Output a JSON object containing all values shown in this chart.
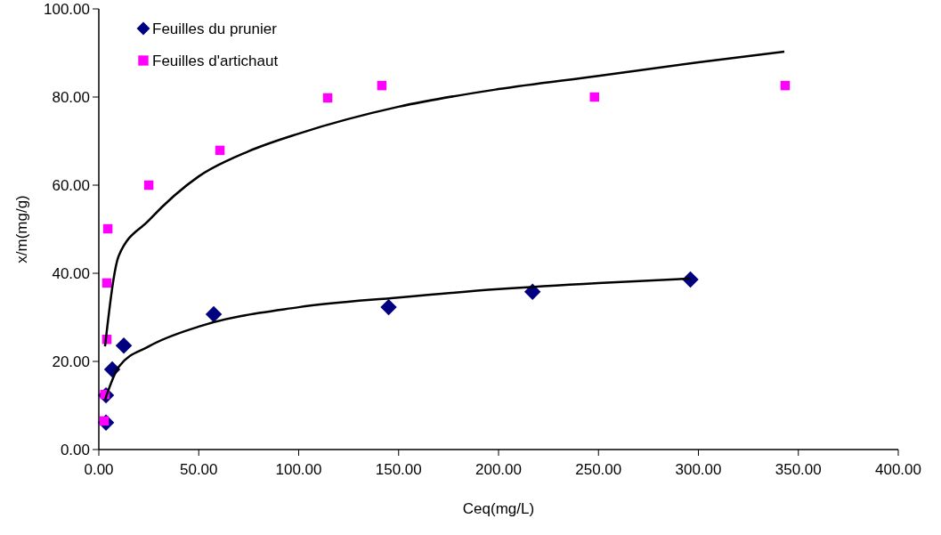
{
  "chart_data": {
    "type": "scatter",
    "xlabel": "Ceq(mg/L)",
    "ylabel": "x/m(mg/g)",
    "xlim": [
      0,
      400
    ],
    "ylim": [
      0,
      100
    ],
    "xticks": [
      {
        "value": 0,
        "label": "0.00"
      },
      {
        "value": 50,
        "label": "50.00"
      },
      {
        "value": 100,
        "label": "100.00"
      },
      {
        "value": 150,
        "label": "150.00"
      },
      {
        "value": 200,
        "label": "200.00"
      },
      {
        "value": 250,
        "label": "250.00"
      },
      {
        "value": 300,
        "label": "300.00"
      },
      {
        "value": 350,
        "label": "350.00"
      },
      {
        "value": 400,
        "label": "400.00"
      }
    ],
    "yticks": [
      {
        "value": 0,
        "label": "0.00"
      },
      {
        "value": 20,
        "label": "20.00"
      },
      {
        "value": 40,
        "label": "40.00"
      },
      {
        "value": 60,
        "label": "60.00"
      },
      {
        "value": 80,
        "label": "80.00"
      },
      {
        "value": 100,
        "label": "100.00"
      }
    ],
    "grid": false,
    "legend": "top left",
    "series": [
      {
        "name": "Feuilles du prunier",
        "marker": "diamond",
        "color": "#000080",
        "x": [
          3.6,
          3.6,
          6.7,
          12.5,
          57.5,
          145,
          217,
          296
        ],
        "values": [
          6.1,
          12.3,
          18.2,
          23.6,
          30.7,
          32.3,
          35.8,
          38.6
        ]
      },
      {
        "name": "Feuilles d'artichaut",
        "marker": "square",
        "color": "#ff00ff",
        "x": [
          2.7,
          3,
          4,
          4,
          4.5,
          25,
          60.6,
          114.5,
          141.6,
          248,
          343.4
        ],
        "values": [
          6.5,
          12.5,
          25,
          37.8,
          50.1,
          60,
          67.9,
          79.8,
          82.6,
          80,
          82.6
        ]
      },
      {
        "type": "line",
        "marker": "none",
        "color": "#000000",
        "x": [
          3.1,
          10,
          25,
          50,
          100,
          150,
          200,
          250,
          296
        ],
        "values": [
          11.3,
          18.8,
          23.4,
          27.9,
          32.3,
          34.5,
          36.4,
          37.8,
          38.8
        ]
      },
      {
        "type": "line",
        "marker": "none",
        "color": "#000000",
        "x": [
          3.1,
          10,
          25,
          50,
          75,
          100,
          150,
          200,
          250,
          300,
          343
        ],
        "values": [
          23.4,
          44,
          52,
          62,
          67.7,
          71.7,
          77.8,
          81.8,
          84.8,
          87.9,
          90.3
        ]
      }
    ]
  }
}
